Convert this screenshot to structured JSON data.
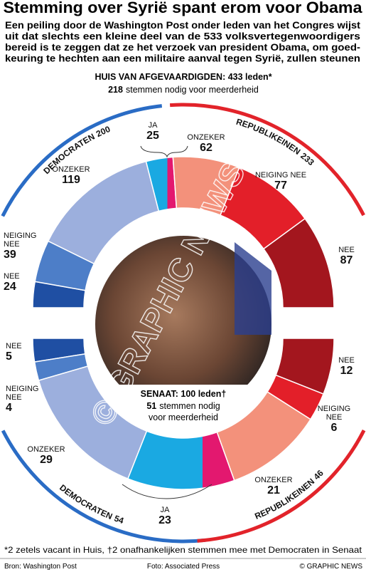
{
  "title": "Stemming over Syrië spant erom voor Obama",
  "subtitle": [
    "Een peiling door de Washington Post onder leden van het Congres wijst",
    "uit dat slechts een kleine deel van de 533 volksvertegenwoordigers",
    "bereid is te zeggen dat ze het verzoek van president Obama, om goed-",
    "keuring te hechten aan een militaire aanval tegen Syrië, zullen steunen"
  ],
  "chart_data": [
    {
      "type": "half-donut",
      "heading": "HUIS VAN AFGEVAARDIGDEN: 433 leden*",
      "majority": 218,
      "majority_text": [
        "stemmen nodig voor meerderheid"
      ],
      "segments": [
        {
          "label": "NEE",
          "value": 24,
          "color": "#1f4fa3"
        },
        {
          "label": "NEIGING NEE",
          "value": 39,
          "color": "#4d7ec8"
        },
        {
          "label": "ONZEKER",
          "value": 119,
          "color": "#9cafdd"
        },
        {
          "label": "JA",
          "value": 25,
          "colors": [
            "#1aa9e2",
            "#e3186f"
          ]
        },
        {
          "label": "ONZEKER",
          "value": 62,
          "color": "#f3917b"
        },
        {
          "label": "NEIGING NEE",
          "value": 77,
          "color": "#e31f29"
        },
        {
          "label": "NEE",
          "value": 87,
          "color": "#a3161e"
        }
      ],
      "parties": [
        {
          "name": "DEMOCRATEN",
          "seats": 200,
          "color": "#2a6cc5"
        },
        {
          "name": "REPUBLIKEINEN",
          "seats": 233,
          "color": "#e2232a"
        }
      ]
    },
    {
      "type": "half-donut",
      "heading": "SENAAT: 100 leden†",
      "majority": 51,
      "majority_text": [
        "stemmen nodig",
        "voor meerderheid"
      ],
      "segments": [
        {
          "label": "NEE",
          "value": 5,
          "color": "#1f4fa3"
        },
        {
          "label": "NEIGING NEE",
          "value": 4,
          "color": "#4d7ec8"
        },
        {
          "label": "ONZEKER",
          "value": 29,
          "color": "#9cafdd"
        },
        {
          "label": "JA",
          "value": 23,
          "colors": [
            "#1aa9e2",
            "#e3186f"
          ]
        },
        {
          "label": "ONZEKER",
          "value": 21,
          "color": "#f3917b"
        },
        {
          "label": "NEIGING NEE",
          "value": 6,
          "color": "#e31f29"
        },
        {
          "label": "NEE",
          "value": 12,
          "color": "#a3161e"
        }
      ],
      "parties": [
        {
          "name": "DEMOCRATEN",
          "seats": 54,
          "color": "#2a6cc5"
        },
        {
          "name": "REPUBLIKEINEN",
          "seats": 46,
          "color": "#e2232a"
        }
      ]
    }
  ],
  "watermark": "© GRAPHIC NEWS",
  "footnote": "*2 zetels vacant in Huis,  †2 onafhankelijken stemmen mee met Democraten in Senaat",
  "source": "Bron: Washington Post",
  "photo_credit": "Foto: Associated Press",
  "credit": "© GRAPHIC NEWS"
}
